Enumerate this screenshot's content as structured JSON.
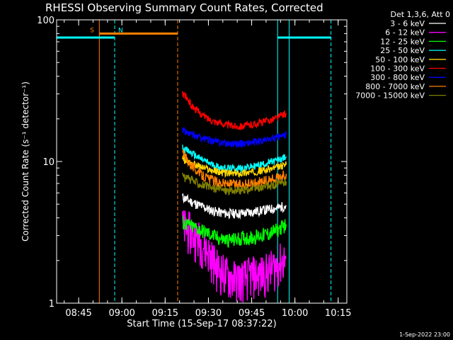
{
  "colors": {
    "background": "#000000",
    "axes": "#ffffff",
    "attenuator_bar": "#ff8000",
    "night_bar": "#00ffff"
  },
  "chart_data": {
    "type": "line",
    "title": "RHESSI Observing Summary Count Rates, Corrected",
    "xlabel": "Start Time (15-Sep-17 08:37:22)",
    "ylabel": "Corrected Count Rate (s⁻¹ detector⁻¹)",
    "y_scale": "log",
    "ylim": [
      1,
      100
    ],
    "y_ticks": [
      1,
      10,
      100
    ],
    "xlim": [
      "08:37:22",
      "10:18:00"
    ],
    "x_ticks": [
      "08:45",
      "09:00",
      "09:15",
      "09:30",
      "09:45",
      "10:00",
      "10:15"
    ],
    "grid": false,
    "legend_title": "Det 1,3,6, Att 0",
    "legend_position": "top-right, outside plot",
    "footer": "1-Sep-2022 23:00",
    "markers": [
      {
        "label": "S",
        "color": "#ff8000"
      },
      {
        "label": "N",
        "color": "#00ffff"
      }
    ],
    "event_lines": [
      {
        "time": "08:52:10",
        "color": "#ff8000",
        "style": "solid"
      },
      {
        "time": "08:57:30",
        "color": "#00ffff",
        "style": "dashed"
      },
      {
        "time": "09:19:20",
        "color": "#ff8000",
        "style": "dashed"
      },
      {
        "time": "09:54:00",
        "color": "#00ffff",
        "style": "solid"
      },
      {
        "time": "09:58:00",
        "color": "#00ffff",
        "style": "solid"
      },
      {
        "time": "10:12:30",
        "color": "#00ffff",
        "style": "dashed"
      }
    ],
    "status_bars": [
      {
        "name": "attenuator",
        "color": "#ff8000",
        "from": "08:52:10",
        "to": "09:19:20",
        "level": 80
      },
      {
        "name": "night",
        "color": "#00ffff",
        "from": "08:37:22",
        "to": "08:57:30",
        "level": 75
      },
      {
        "name": "night",
        "color": "#00ffff",
        "from": "09:54:00",
        "to": "10:12:30",
        "level": 75
      }
    ],
    "series": [
      {
        "name": "3 - 6 keV",
        "color": "#ffffff",
        "x": [
          "09:21",
          "09:24",
          "09:27",
          "09:30",
          "09:33",
          "09:36",
          "09:39",
          "09:42",
          "09:45",
          "09:48",
          "09:51",
          "09:54",
          "09:57"
        ],
        "y": [
          5.6,
          5.2,
          4.9,
          4.6,
          4.4,
          4.3,
          4.3,
          4.3,
          4.4,
          4.5,
          4.6,
          4.7,
          4.9
        ]
      },
      {
        "name": "6 - 12 keV",
        "color": "#ff00ff",
        "x": [
          "09:21",
          "09:24",
          "09:27",
          "09:30",
          "09:33",
          "09:36",
          "09:39",
          "09:42",
          "09:45",
          "09:48",
          "09:51",
          "09:54",
          "09:57"
        ],
        "y": [
          3.5,
          3.2,
          2.8,
          2.3,
          1.8,
          1.6,
          1.5,
          1.5,
          1.6,
          1.6,
          1.7,
          1.9,
          2.1
        ]
      },
      {
        "name": "12 - 25 keV",
        "color": "#00ff00",
        "x": [
          "09:21",
          "09:24",
          "09:27",
          "09:30",
          "09:33",
          "09:36",
          "09:39",
          "09:42",
          "09:45",
          "09:48",
          "09:51",
          "09:54",
          "09:57"
        ],
        "y": [
          3.7,
          3.5,
          3.3,
          3.1,
          2.9,
          2.8,
          2.8,
          2.9,
          2.9,
          3.0,
          3.1,
          3.3,
          3.6
        ]
      },
      {
        "name": "25 - 50 keV",
        "color": "#00ffff",
        "x": [
          "09:21",
          "09:24",
          "09:27",
          "09:30",
          "09:33",
          "09:36",
          "09:39",
          "09:42",
          "09:45",
          "09:48",
          "09:51",
          "09:54",
          "09:57"
        ],
        "y": [
          12.5,
          11.5,
          10.5,
          9.8,
          9.2,
          9.0,
          8.9,
          9.0,
          9.2,
          9.5,
          9.8,
          10.2,
          10.8
        ]
      },
      {
        "name": "50 - 100 keV",
        "color": "#ffd700",
        "x": [
          "09:21",
          "09:24",
          "09:27",
          "09:30",
          "09:33",
          "09:36",
          "09:39",
          "09:42",
          "09:45",
          "09:48",
          "09:51",
          "09:54",
          "09:57"
        ],
        "y": [
          10.5,
          9.8,
          9.2,
          8.8,
          8.5,
          8.3,
          8.2,
          8.3,
          8.4,
          8.6,
          8.8,
          9.1,
          9.5
        ]
      },
      {
        "name": "100 - 300 keV",
        "color": "#ff0000",
        "x": [
          "09:21",
          "09:24",
          "09:27",
          "09:30",
          "09:33",
          "09:36",
          "09:39",
          "09:42",
          "09:45",
          "09:48",
          "09:51",
          "09:54",
          "09:57"
        ],
        "y": [
          31,
          25,
          22,
          20,
          19,
          18.2,
          17.8,
          17.8,
          18.2,
          18.8,
          19.5,
          20.5,
          22
        ]
      },
      {
        "name": "300 - 800 keV",
        "color": "#0000ff",
        "x": [
          "09:21",
          "09:24",
          "09:27",
          "09:30",
          "09:33",
          "09:36",
          "09:39",
          "09:42",
          "09:45",
          "09:48",
          "09:51",
          "09:54",
          "09:57"
        ],
        "y": [
          16.5,
          15.5,
          14.8,
          14.2,
          13.8,
          13.5,
          13.4,
          13.4,
          13.6,
          13.9,
          14.3,
          14.8,
          15.5
        ]
      },
      {
        "name": "800 - 7000 keV",
        "color": "#ff8000",
        "x": [
          "09:21",
          "09:24",
          "09:27",
          "09:30",
          "09:33",
          "09:36",
          "09:39",
          "09:42",
          "09:45",
          "09:48",
          "09:51",
          "09:54",
          "09:57"
        ],
        "y": [
          11.5,
          9.5,
          8.2,
          7.6,
          7.2,
          7.0,
          6.9,
          6.9,
          7.0,
          7.2,
          7.4,
          7.7,
          8.2
        ]
      },
      {
        "name": "7000 - 15000 keV",
        "color": "#808000",
        "x": [
          "09:21",
          "09:24",
          "09:27",
          "09:30",
          "09:33",
          "09:36",
          "09:39",
          "09:42",
          "09:45",
          "09:48",
          "09:51",
          "09:54",
          "09:57"
        ],
        "y": [
          7.8,
          7.4,
          7.0,
          6.6,
          6.4,
          6.3,
          6.2,
          6.3,
          6.4,
          6.5,
          6.7,
          6.9,
          7.2
        ]
      }
    ]
  }
}
